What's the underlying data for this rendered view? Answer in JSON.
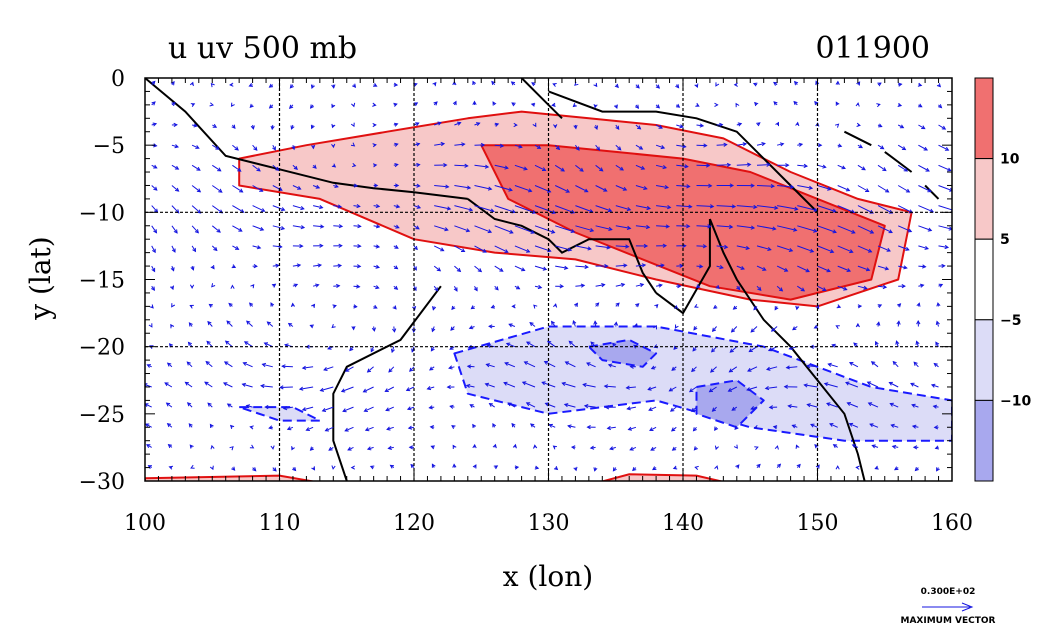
{
  "title_left": "u uv 500 mb",
  "title_right": "011900",
  "xlabel": "x (lon)",
  "ylabel": "y (lat)",
  "x_ticks": [
    "100",
    "110",
    "120",
    "130",
    "140",
    "150",
    "160"
  ],
  "y_ticks": [
    "0",
    "−5",
    "−10",
    "−15",
    "−20",
    "−25",
    "−30"
  ],
  "colorbar": {
    "labels": [
      "10",
      "5",
      "−5",
      "−10"
    ],
    "bands": [
      {
        "range": "above 10",
        "color": "#f07070"
      },
      {
        "range": "5 to 10",
        "color": "#f7c8c8"
      },
      {
        "range": "-5 to 5",
        "color": "#ffffff"
      },
      {
        "range": "-10 to -5",
        "color": "#dcdcf7"
      },
      {
        "range": "below -10",
        "color": "#a8a8ee"
      }
    ]
  },
  "vector_ref": {
    "value_label": "0.300E+02",
    "caption": "MAXIMUM VECTOR"
  },
  "colors": {
    "positive_contour": "#e01010",
    "negative_contour": "#1a1aff",
    "vector": "#1515e0",
    "coast": "#000000"
  },
  "chart_data": {
    "type": "heatmap",
    "x_range": [
      100,
      160
    ],
    "y_range": [
      -30,
      0
    ],
    "contour_levels": [
      -10,
      -5,
      5,
      10
    ],
    "grid_x": [
      110,
      120,
      130,
      140,
      150
    ],
    "grid_y": [
      -10,
      -20
    ],
    "features": [
      {
        "name": "positive u band",
        "level": 5,
        "lon": [
          107,
          112,
          118,
          124,
          128,
          133,
          138,
          143,
          148,
          153,
          157,
          156,
          150,
          145,
          138,
          132,
          126,
          120,
          113,
          107
        ],
        "lat": [
          -6,
          -5,
          -4,
          -3,
          -2.5,
          -3,
          -3.5,
          -4.5,
          -7,
          -9,
          -10,
          -15,
          -17,
          -16.5,
          -15,
          -13.5,
          -13,
          -12,
          -9,
          -8
        ]
      },
      {
        "name": "strong positive u core",
        "level": 10,
        "lon": [
          125,
          130,
          135,
          140,
          145,
          150,
          155,
          154,
          148,
          142,
          137,
          132,
          127
        ],
        "lat": [
          -5,
          -5,
          -5.5,
          -6,
          -7,
          -9,
          -11,
          -15,
          -16.5,
          -15.5,
          -13.5,
          -11.5,
          -9
        ]
      },
      {
        "name": "negative u region",
        "level": -5,
        "lon": [
          123,
          130,
          138,
          146,
          154,
          160,
          160,
          152,
          145,
          138,
          130,
          124
        ],
        "lat": [
          -20.5,
          -18.5,
          -18.5,
          -20,
          -23,
          -24,
          -27,
          -27,
          -26,
          -24,
          -25,
          -23.5
        ]
      },
      {
        "name": "negative u core west",
        "level": -10,
        "lon": [
          133,
          136,
          138,
          137,
          134
        ],
        "lat": [
          -20,
          -19.5,
          -20.5,
          -21.5,
          -21
        ]
      },
      {
        "name": "negative u core east",
        "level": -10,
        "lon": [
          141,
          144,
          146,
          144,
          141
        ],
        "lat": [
          -23,
          -22.5,
          -24,
          -26,
          -25
        ]
      },
      {
        "name": "negative u south-west",
        "level": -5,
        "lon": [
          107,
          111,
          113,
          110
        ],
        "lat": [
          -24.5,
          -24.5,
          -25.5,
          -25.5
        ]
      }
    ],
    "vector_field": "wind vectors uv 500 mb on regular grid"
  }
}
